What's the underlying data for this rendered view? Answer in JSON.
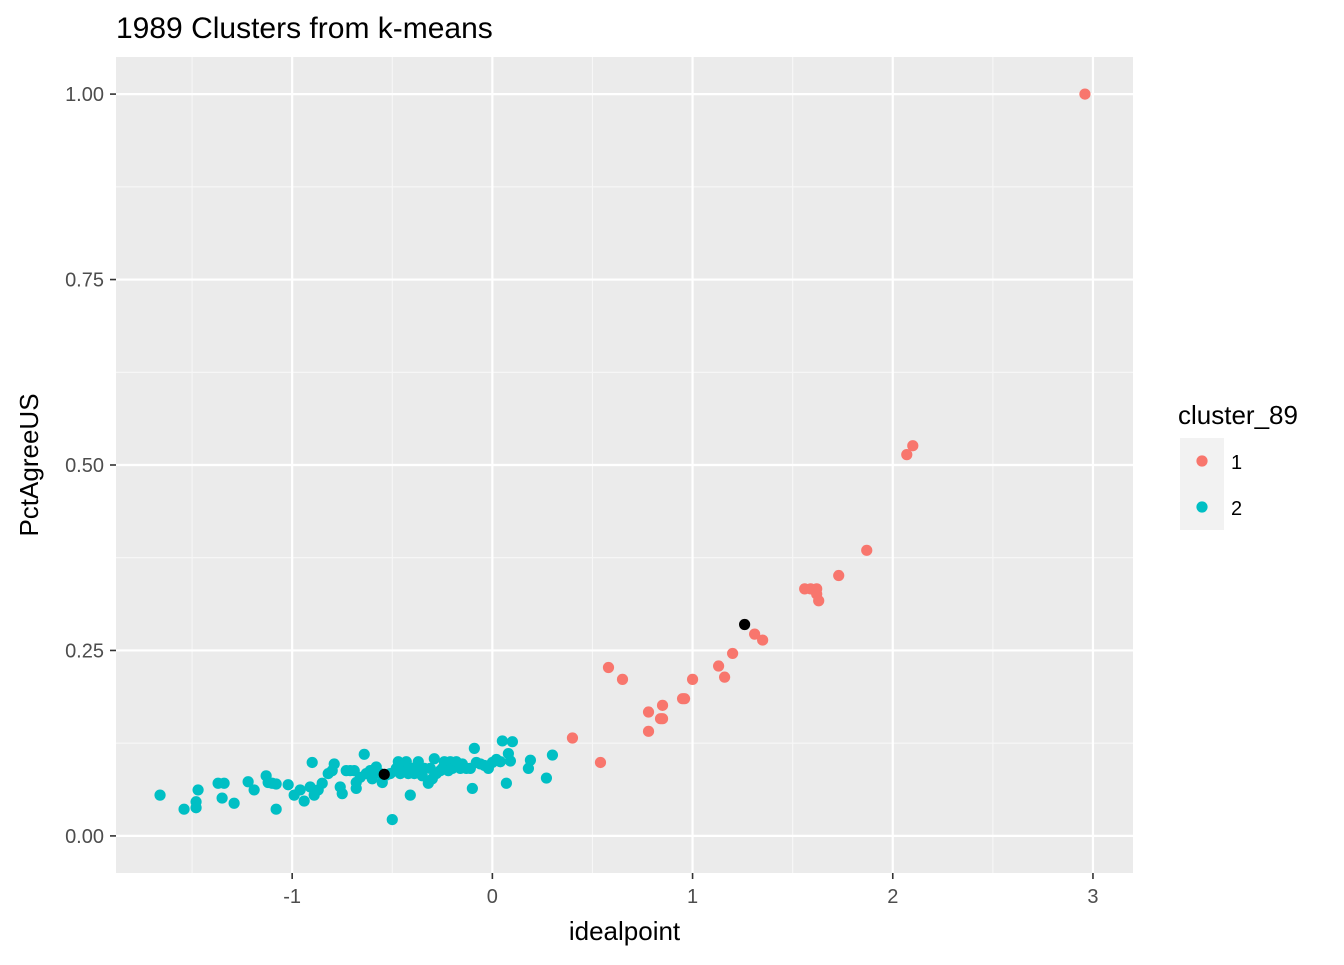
{
  "chart_data": {
    "type": "scatter",
    "title": "1989 Clusters from k-means",
    "xlabel": "idealpoint",
    "ylabel": "PctAgreeUS",
    "xlim": [
      -1.88,
      3.2
    ],
    "ylim": [
      -0.05,
      1.05
    ],
    "x_ticks": [
      -1,
      0,
      1,
      2,
      3
    ],
    "x_tick_labels": [
      "-1",
      "0",
      "1",
      "2",
      "3"
    ],
    "y_ticks": [
      0,
      0.25,
      0.5,
      0.75,
      1.0
    ],
    "y_tick_labels": [
      "0.00",
      "0.25",
      "0.50",
      "0.75",
      "1.00"
    ],
    "grid": true,
    "legend": {
      "title": "cluster_89",
      "placement": "right",
      "entries": [
        {
          "label": "1",
          "color": "#F8766D"
        },
        {
          "label": "2",
          "color": "#00BFC4"
        }
      ]
    },
    "series": [
      {
        "name": "1",
        "color": "#F8766D",
        "points": [
          [
            2.96,
            1.0
          ],
          [
            2.1,
            0.526
          ],
          [
            2.07,
            0.514
          ],
          [
            1.87,
            0.385
          ],
          [
            1.73,
            0.351
          ],
          [
            1.56,
            0.333
          ],
          [
            1.59,
            0.333
          ],
          [
            1.62,
            0.333
          ],
          [
            1.62,
            0.326
          ],
          [
            1.63,
            0.317
          ],
          [
            1.31,
            0.272
          ],
          [
            1.35,
            0.264
          ],
          [
            1.2,
            0.246
          ],
          [
            1.13,
            0.229
          ],
          [
            1.16,
            0.214
          ],
          [
            1.0,
            0.211
          ],
          [
            0.58,
            0.227
          ],
          [
            0.65,
            0.211
          ],
          [
            0.95,
            0.185
          ],
          [
            0.96,
            0.185
          ],
          [
            0.85,
            0.176
          ],
          [
            0.78,
            0.167
          ],
          [
            0.84,
            0.158
          ],
          [
            0.85,
            0.158
          ],
          [
            0.78,
            0.141
          ],
          [
            0.4,
            0.132
          ],
          [
            0.54,
            0.099
          ]
        ]
      },
      {
        "name": "2",
        "color": "#00BFC4",
        "points": [
          [
            -1.66,
            0.055
          ],
          [
            -1.54,
            0.036
          ],
          [
            -1.47,
            0.062
          ],
          [
            -1.48,
            0.046
          ],
          [
            -1.48,
            0.038
          ],
          [
            -1.37,
            0.071
          ],
          [
            -1.34,
            0.071
          ],
          [
            -1.35,
            0.051
          ],
          [
            -1.29,
            0.044
          ],
          [
            -1.22,
            0.073
          ],
          [
            -1.19,
            0.062
          ],
          [
            -1.13,
            0.081
          ],
          [
            -1.12,
            0.072
          ],
          [
            -1.1,
            0.071
          ],
          [
            -1.08,
            0.07
          ],
          [
            -1.08,
            0.036
          ],
          [
            -1.02,
            0.069
          ],
          [
            -0.99,
            0.055
          ],
          [
            -0.96,
            0.062
          ],
          [
            -0.94,
            0.047
          ],
          [
            -0.91,
            0.066
          ],
          [
            -0.9,
            0.099
          ],
          [
            -0.89,
            0.055
          ],
          [
            -0.87,
            0.062
          ],
          [
            -0.85,
            0.071
          ],
          [
            -0.82,
            0.084
          ],
          [
            -0.8,
            0.088
          ],
          [
            -0.79,
            0.097
          ],
          [
            -0.76,
            0.066
          ],
          [
            -0.75,
            0.057
          ],
          [
            -0.73,
            0.088
          ],
          [
            -0.71,
            0.088
          ],
          [
            -0.69,
            0.088
          ],
          [
            -0.68,
            0.064
          ],
          [
            -0.68,
            0.072
          ],
          [
            -0.66,
            0.079
          ],
          [
            -0.64,
            0.11
          ],
          [
            -0.63,
            0.084
          ],
          [
            -0.61,
            0.088
          ],
          [
            -0.6,
            0.077
          ],
          [
            -0.59,
            0.088
          ],
          [
            -0.58,
            0.093
          ],
          [
            -0.56,
            0.084
          ],
          [
            -0.55,
            0.072
          ],
          [
            -0.53,
            0.082
          ],
          [
            -0.51,
            0.084
          ],
          [
            -0.5,
            0.022
          ],
          [
            -0.48,
            0.091
          ],
          [
            -0.47,
            0.1
          ],
          [
            -0.46,
            0.084
          ],
          [
            -0.45,
            0.088
          ],
          [
            -0.44,
            0.096
          ],
          [
            -0.43,
            0.1
          ],
          [
            -0.42,
            0.084
          ],
          [
            -0.41,
            0.055
          ],
          [
            -0.4,
            0.091
          ],
          [
            -0.39,
            0.084
          ],
          [
            -0.38,
            0.093
          ],
          [
            -0.37,
            0.1
          ],
          [
            -0.36,
            0.088
          ],
          [
            -0.35,
            0.081
          ],
          [
            -0.34,
            0.091
          ],
          [
            -0.32,
            0.071
          ],
          [
            -0.31,
            0.091
          ],
          [
            -0.3,
            0.077
          ],
          [
            -0.29,
            0.104
          ],
          [
            -0.28,
            0.084
          ],
          [
            -0.26,
            0.088
          ],
          [
            -0.25,
            0.091
          ],
          [
            -0.24,
            0.1
          ],
          [
            -0.22,
            0.088
          ],
          [
            -0.21,
            0.1
          ],
          [
            -0.2,
            0.091
          ],
          [
            -0.18,
            0.1
          ],
          [
            -0.16,
            0.091
          ],
          [
            -0.15,
            0.097
          ],
          [
            -0.13,
            0.091
          ],
          [
            -0.11,
            0.091
          ],
          [
            -0.1,
            0.064
          ],
          [
            -0.09,
            0.118
          ],
          [
            -0.08,
            0.099
          ],
          [
            -0.06,
            0.097
          ],
          [
            -0.04,
            0.095
          ],
          [
            -0.02,
            0.091
          ],
          [
            0.0,
            0.099
          ],
          [
            0.02,
            0.103
          ],
          [
            0.04,
            0.1
          ],
          [
            0.05,
            0.128
          ],
          [
            0.07,
            0.071
          ],
          [
            0.08,
            0.111
          ],
          [
            0.09,
            0.101
          ],
          [
            0.1,
            0.127
          ],
          [
            0.18,
            0.091
          ],
          [
            0.19,
            0.102
          ],
          [
            0.27,
            0.078
          ],
          [
            0.3,
            0.109
          ]
        ]
      }
    ],
    "centroids": {
      "color": "#000000",
      "points": [
        [
          -0.54,
          0.083
        ],
        [
          1.26,
          0.285
        ]
      ]
    }
  }
}
